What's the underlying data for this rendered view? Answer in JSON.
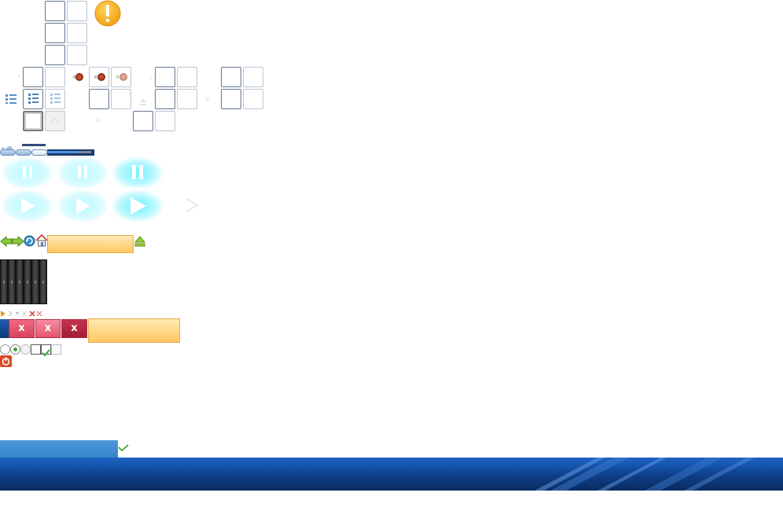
{
  "app": {
    "title": "",
    "warning_icon": "exclamation-warning-icon",
    "colors": {
      "taskbar_blue": "#1450a6",
      "status_blue": "#3784c9",
      "orange_bar": "#ffc861",
      "close_red": "#d8415b",
      "glow_cyan": "#70f3ff"
    }
  },
  "red_buttons": {
    "close_1": "x",
    "close_2": "x",
    "close_3": "x"
  },
  "icons": {
    "back": "arrow-left-icon",
    "forward": "arrow-right-icon",
    "refresh": "refresh-icon",
    "home": "home-icon",
    "eject": "eject-icon",
    "pause": "pause-icon",
    "play": "play-icon",
    "list": "list-view-icon",
    "checkmark": "checkmark-icon",
    "power": "power-icon"
  },
  "statusbar": {
    "label": ""
  }
}
